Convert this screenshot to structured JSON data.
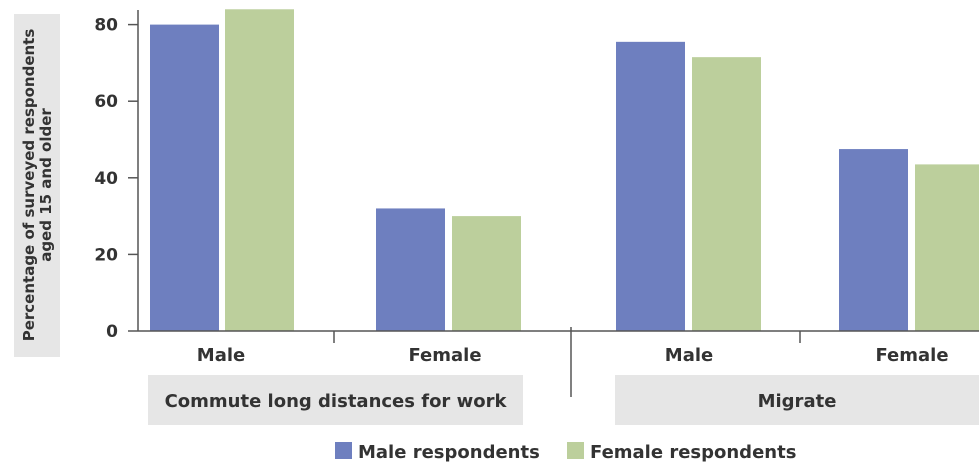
{
  "chart_data": {
    "type": "bar",
    "ylabel_lines": [
      "Percentage of surveyed respondents",
      "aged 15 and older"
    ],
    "yticks": [
      0,
      20,
      40,
      60,
      80
    ],
    "ylim": [
      0,
      84
    ],
    "categories": [
      "Male",
      "Female",
      "Male",
      "Female"
    ],
    "groups": [
      "Commute long distances for work",
      "Migrate"
    ],
    "series": [
      {
        "name": "Male respondents",
        "color": "#6e7fbf",
        "values": [
          80,
          32,
          75.5,
          47.5
        ]
      },
      {
        "name": "Female respondents",
        "color": "#bccf9c",
        "values": [
          84,
          30,
          71.5,
          43.5
        ]
      }
    ],
    "legend": {
      "position": "bottom-center"
    },
    "group_box_color": "#e6e6e6",
    "grid": false
  }
}
